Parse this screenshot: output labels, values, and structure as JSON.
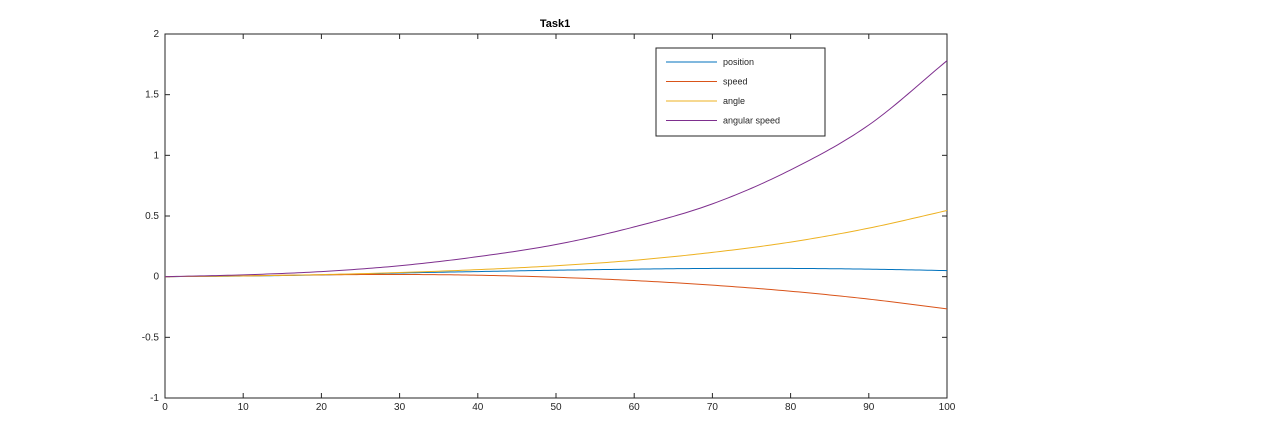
{
  "chart_data": {
    "type": "line",
    "title": "Task1",
    "xlabel": "",
    "ylabel": "",
    "xlim": [
      0,
      100
    ],
    "ylim": [
      -1,
      2
    ],
    "xticks": [
      0,
      10,
      20,
      30,
      40,
      50,
      60,
      70,
      80,
      90,
      100
    ],
    "yticks": [
      -1,
      -0.5,
      0,
      0.5,
      1,
      1.5,
      2
    ],
    "grid": false,
    "legend_position": "top-right",
    "x": [
      0,
      10,
      20,
      30,
      40,
      50,
      60,
      70,
      80,
      90,
      100
    ],
    "series": [
      {
        "name": "position",
        "color": "#0072bd",
        "values": [
          0,
          0.005,
          0.015,
          0.03,
          0.042,
          0.053,
          0.062,
          0.068,
          0.068,
          0.062,
          0.05
        ]
      },
      {
        "name": "speed",
        "color": "#d95319",
        "values": [
          0,
          0.007,
          0.015,
          0.018,
          0.012,
          -0.005,
          -0.032,
          -0.07,
          -0.12,
          -0.185,
          -0.265
        ]
      },
      {
        "name": "angle",
        "color": "#edb120",
        "values": [
          0,
          0.006,
          0.017,
          0.034,
          0.058,
          0.09,
          0.135,
          0.2,
          0.285,
          0.4,
          0.545
        ]
      },
      {
        "name": "angular speed",
        "color": "#7e2f8e",
        "values": [
          0,
          0.015,
          0.042,
          0.09,
          0.165,
          0.265,
          0.41,
          0.6,
          0.88,
          1.25,
          1.78
        ]
      }
    ]
  }
}
